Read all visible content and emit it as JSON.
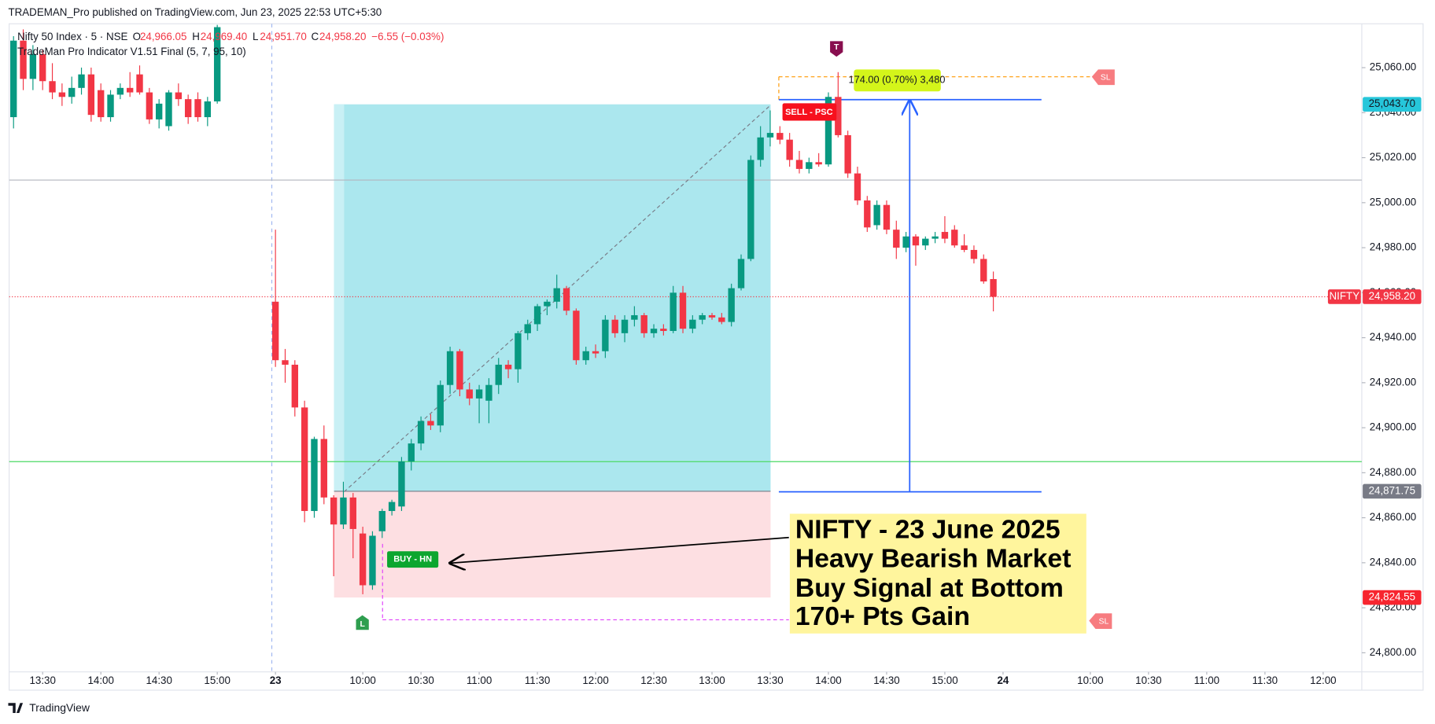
{
  "header": {
    "published": "TRADEMAN_Pro published on TradingView.com, Jun 23, 2025 22:53 UTC+5:30"
  },
  "chart_data": {
    "type": "candlestick",
    "symbol": "Nifty 50 Index · 5 · NSE",
    "ohlc_legend": [
      {
        "key": "O",
        "value": "24,966.05"
      },
      {
        "key": "H",
        "value": "24,969.40"
      },
      {
        "key": "L",
        "value": "24,951.70"
      },
      {
        "key": "C",
        "value": "24,958.20"
      }
    ],
    "change": "−6.55 (−0.03%)",
    "indicator": "TradeMan Pro Indicator V1.51 Final (5, 7, 95, 10)",
    "colors": {
      "up": "#089981",
      "down": "#f23645"
    },
    "sessions": [
      {
        "x": [
          "13:15",
          "13:20",
          "13:25",
          "13:30",
          "13:35",
          "13:40",
          "13:45",
          "13:50",
          "13:55",
          "14:00",
          "14:05",
          "14:10",
          "14:15",
          "14:20",
          "14:25",
          "14:30",
          "14:35",
          "14:40",
          "14:45",
          "14:50",
          "14:55",
          "15:00"
        ],
        "open": [
          25038,
          25072,
          25055,
          25066,
          25054,
          25049,
          25047,
          25051,
          25057,
          25050,
          25038,
          25048,
          25051,
          25057,
          25049,
          25037,
          25034,
          25049,
          25046,
          25046,
          25038,
          25045
        ],
        "high": [
          25074,
          25077,
          25070,
          25068,
          25062,
          25053,
          25056,
          25060,
          25060,
          25053,
          25050,
          25053,
          25058,
          25061,
          25051,
          25046,
          25050,
          25053,
          25048,
          25049,
          25047,
          25079
        ],
        "low": [
          25033,
          25050,
          25050,
          25050,
          25046,
          25043,
          25044,
          25048,
          25036,
          25036,
          25036,
          25046,
          25047,
          25048,
          25035,
          25033,
          25032,
          25043,
          25035,
          25036,
          25034,
          25044
        ],
        "close": [
          25072,
          25055,
          25066,
          25054,
          25049,
          25047,
          25051,
          25057,
          25039,
          25038,
          25048,
          25051,
          25049,
          25049,
          25037,
          25044,
          25049,
          25046,
          25038,
          25038,
          25045,
          25078
        ]
      },
      {
        "x": [
          "09:15",
          "09:20",
          "09:25",
          "09:30",
          "09:35",
          "09:40",
          "09:45",
          "09:50",
          "09:55",
          "10:00",
          "10:05",
          "10:10",
          "10:15",
          "10:20",
          "10:25",
          "10:30",
          "10:35",
          "10:40",
          "10:45",
          "10:50",
          "10:55",
          "11:00",
          "11:05",
          "11:10",
          "11:15",
          "11:20",
          "11:25",
          "11:30",
          "11:35",
          "11:40",
          "11:45",
          "11:50",
          "11:55",
          "12:00",
          "12:05",
          "12:10",
          "12:15",
          "12:20",
          "12:25",
          "12:30",
          "12:35",
          "12:40",
          "12:45",
          "12:50",
          "12:55",
          "13:00",
          "13:05",
          "13:10",
          "13:15",
          "13:20",
          "13:25",
          "13:30",
          "13:35",
          "13:40",
          "13:45",
          "13:50",
          "13:55",
          "14:00",
          "14:05",
          "14:10",
          "14:15",
          "14:20",
          "14:25",
          "14:30",
          "14:35",
          "14:40",
          "14:45",
          "14:50",
          "14:55",
          "15:00",
          "15:05",
          "15:10",
          "15:15",
          "15:20",
          "15:25"
        ],
        "open": [
          24956,
          24930,
          24928,
          24909,
          24863,
          24895,
          24869,
          24857,
          24869,
          24853,
          24830,
          24854,
          24863,
          24865,
          24885,
          24893,
          24903,
          24901,
          24919,
          24934,
          24917,
          24913,
          24912,
          24919,
          24928,
          24926,
          24942,
          24946,
          24954,
          24956,
          24962,
          24952,
          24930,
          24934,
          24934,
          24948,
          24942,
          24948,
          24950,
          24942,
          24944,
          24943,
          24960,
          24944,
          24948,
          24950,
          24949,
          24947,
          24962,
          24975,
          25019,
          25029,
          25031,
          25028,
          25019,
          25015,
          25018,
          25017,
          25047,
          25030,
          25013,
          25001,
          24990,
          24999,
          24988,
          24980,
          24985,
          24981,
          24984,
          24987,
          24988,
          24981,
          24979,
          24975,
          24966.05
        ],
        "high": [
          24988,
          24935,
          24930,
          24912,
          24896,
          24901,
          24870,
          24876,
          24871,
          24856,
          24854,
          24864,
          24868,
          24887,
          24895,
          24905,
          24906,
          24921,
          24936,
          24935,
          24920,
          24919,
          24922,
          24931,
          24930,
          24943,
          24948,
          24955,
          24957,
          24968,
          24963,
          24953,
          24936,
          24937,
          24950,
          24950,
          24950,
          24954,
          24951,
          24946,
          24946,
          24963,
          24963,
          24950,
          24951,
          24951,
          24951,
          24964,
          24977,
          25021,
          25034,
          25041,
          25034,
          25031,
          25023,
          25020,
          25022,
          25049,
          25058,
          25032,
          25016,
          25003,
          25001,
          25001,
          24992,
          24987,
          24986,
          24985,
          24987,
          24994,
          24990,
          24986,
          24981,
          24977,
          24969.4
        ],
        "low": [
          24927,
          24920,
          24905,
          24858,
          24860,
          24866,
          24834,
          24855,
          24842,
          24826,
          24828,
          24851,
          24861,
          24863,
          24881,
          24890,
          24899,
          24898,
          24915,
          24914,
          24910,
          24902,
          24902,
          24915,
          24922,
          24920,
          24939,
          24943,
          24950,
          24953,
          24950,
          24928,
          24928,
          24931,
          24931,
          24940,
          24938,
          24945,
          24940,
          24940,
          24941,
          24942,
          24942,
          24942,
          24946,
          24948,
          24946,
          24945,
          24961,
          24974,
          25016,
          25025,
          25026,
          25016,
          25013,
          25013,
          25016,
          25016,
          25029,
          25011,
          24999,
          24987,
          24988,
          24986,
          24975,
          24978,
          24972,
          24979,
          24982,
          24982,
          24980,
          24978,
          24973,
          24964,
          24951.7
        ],
        "close": [
          24930,
          24928,
          24909,
          24863,
          24895,
          24869,
          24857,
          24869,
          24855,
          24830,
          24852,
          24863,
          24867,
          24885,
          24893,
          24903,
          24901,
          24919,
          24934,
          24917,
          24913,
          24917,
          24919,
          24928,
          24926,
          24942,
          24946,
          24954,
          24956,
          24962,
          24952,
          24930,
          24934,
          24933,
          24948,
          24942,
          24948,
          24950,
          24942,
          24944,
          24943,
          24960,
          24944,
          24948,
          24950,
          24949,
          24947,
          24962,
          24975,
          25019,
          25029,
          25031,
          25028,
          25019,
          25015,
          25018,
          25017,
          25047,
          25030,
          25013,
          25001,
          24989,
          24999,
          24988,
          24980,
          24985,
          24981,
          24984,
          24985,
          24984,
          24981,
          24979,
          24975,
          24965,
          24958.2
        ]
      }
    ],
    "ylim": [
      24791.5,
      25079.5
    ],
    "yticks": [
      {
        "value": 24800,
        "label": "24,800.00"
      },
      {
        "value": 24820,
        "label": "24,820.00"
      },
      {
        "value": 24840,
        "label": "24,840.00"
      },
      {
        "value": 24860,
        "label": "24,860.00"
      },
      {
        "value": 24880,
        "label": "24,880.00"
      },
      {
        "value": 24900,
        "label": "24,900.00"
      },
      {
        "value": 24920,
        "label": "24,920.00"
      },
      {
        "value": 24940,
        "label": "24,940.00"
      },
      {
        "value": 24960,
        "label": "24,960.00"
      },
      {
        "value": 24980,
        "label": "24,980.00"
      },
      {
        "value": 25000,
        "label": "25,000.00"
      },
      {
        "value": 25020,
        "label": "25,020.00"
      },
      {
        "value": 25040,
        "label": "25,040.00"
      },
      {
        "value": 25060,
        "label": "25,060.00"
      }
    ],
    "xticks": [
      "13:30",
      "14:00",
      "14:30",
      "15:00",
      "23",
      "10:00",
      "10:30",
      "11:00",
      "11:30",
      "12:00",
      "12:30",
      "13:00",
      "13:30",
      "14:00",
      "14:30",
      "15:00",
      "24",
      "10:00",
      "10:30",
      "11:00",
      "11:30",
      "12:00"
    ],
    "price_labels": [
      {
        "value": 25043.7,
        "label": "25,043.70",
        "color": "#26c6da",
        "text_color": "#131722"
      },
      {
        "value": 24958.2,
        "label": "24,958.20",
        "color": "#f23645",
        "text_color": "#ffffff",
        "tag": "NIFTY"
      },
      {
        "value": 24871.75,
        "label": "24,871.75",
        "color": "#787b86",
        "text_color": "#ffffff"
      },
      {
        "value": 24824.55,
        "label": "24,824.55",
        "color": "#f7252f",
        "text_color": "#ffffff"
      }
    ],
    "annotations": {
      "measure": "174.00 (0.70%) 3,480",
      "sell": "SELL - PSC",
      "buy": "BUY - HN",
      "top_marker": "T",
      "low_marker": "L",
      "stop_tags": [
        "SL",
        "SL"
      ],
      "note": [
        "NIFTY - 23 June 2025",
        "Heavy Bearish Market",
        "Buy Signal at Bottom",
        "170+ Pts Gain"
      ]
    }
  },
  "footer": {
    "brand": "TradingView"
  }
}
